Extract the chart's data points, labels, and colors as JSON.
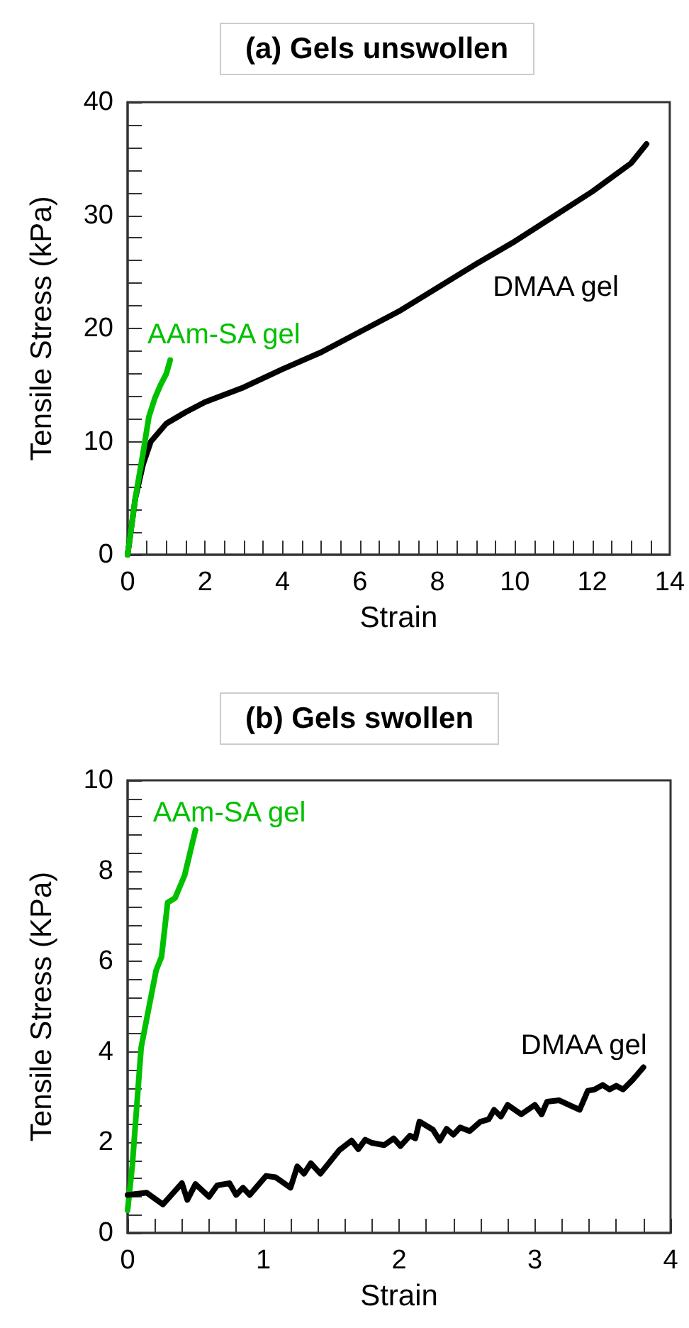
{
  "chart_data": [
    {
      "type": "line",
      "title": "(a) Gels unswollen",
      "xlabel": "Strain",
      "ylabel": "Tensile Stress (kPa)",
      "xlim": [
        0,
        14
      ],
      "ylim": [
        0,
        40
      ],
      "xticks": [
        0,
        {
          "value": 0.5,
          "label": null
        },
        {
          "value": 1,
          "label": null
        },
        {
          "value": 1.5,
          "label": null
        },
        2,
        {
          "value": 2.5,
          "label": null
        },
        {
          "value": 3,
          "label": null
        },
        {
          "value": 3.5,
          "label": null
        },
        4,
        {
          "value": 4.5,
          "label": null
        },
        {
          "value": 5,
          "label": null
        },
        {
          "value": 5.5,
          "label": null
        },
        6,
        {
          "value": 6.5,
          "label": null
        },
        {
          "value": 7,
          "label": null
        },
        {
          "value": 7.5,
          "label": null
        },
        8,
        {
          "value": 8.5,
          "label": null
        },
        {
          "value": 9,
          "label": null
        },
        {
          "value": 9.5,
          "label": null
        },
        10,
        {
          "value": 10.5,
          "label": null
        },
        {
          "value": 11,
          "label": null
        },
        {
          "value": 11.5,
          "label": null
        },
        12,
        {
          "value": 12.5,
          "label": null
        },
        {
          "value": 13,
          "label": null
        },
        {
          "value": 13.5,
          "label": null
        },
        14
      ],
      "yticks": [
        0,
        {
          "value": 2,
          "label": null
        },
        {
          "value": 4,
          "label": null
        },
        {
          "value": 6,
          "label": null
        },
        {
          "value": 8,
          "label": null
        },
        10,
        {
          "value": 12,
          "label": null
        },
        {
          "value": 14,
          "label": null
        },
        {
          "value": 16,
          "label": null
        },
        {
          "value": 18,
          "label": null
        },
        20,
        {
          "value": 22,
          "label": null
        },
        {
          "value": 24,
          "label": null
        },
        {
          "value": 26,
          "label": null
        },
        {
          "value": 28,
          "label": null
        },
        30,
        {
          "value": 32,
          "label": null
        },
        {
          "value": 34,
          "label": null
        },
        {
          "value": 36,
          "label": null
        },
        {
          "value": 38,
          "label": null
        },
        40
      ],
      "grid": false,
      "legend": false,
      "marker": "none",
      "line_style": "solid",
      "series": [
        {
          "name": "DMAA gel",
          "color": "#000000",
          "x": [
            0,
            0.2,
            0.4,
            0.6,
            1,
            1.5,
            2,
            3,
            4,
            5,
            6,
            7,
            8,
            9,
            10,
            11,
            12,
            13,
            13.4
          ],
          "values": [
            0,
            5,
            8,
            10,
            11.6,
            12.6,
            13.5,
            14.8,
            16.4,
            17.9,
            19.7,
            21.5,
            23.6,
            25.7,
            27.7,
            29.9,
            32.1,
            34.6,
            36.3
          ]
        },
        {
          "name": "AAm-SA gel",
          "color": "#00c000",
          "x": [
            0,
            0.2,
            0.4,
            0.55,
            0.7,
            0.85,
            1.0,
            1.1
          ],
          "values": [
            0,
            5,
            9,
            12.2,
            13.8,
            15,
            16,
            17.2
          ]
        }
      ]
    },
    {
      "type": "line",
      "title": "(b) Gels swollen",
      "xlabel": "Strain",
      "ylabel": "Tensile Stress (KPa)",
      "xlim": [
        0,
        4
      ],
      "ylim": [
        0,
        10
      ],
      "xticks": [
        0,
        {
          "value": 0.2,
          "label": null
        },
        {
          "value": 0.4,
          "label": null
        },
        {
          "value": 0.6,
          "label": null
        },
        {
          "value": 0.8,
          "label": null
        },
        1,
        {
          "value": 1.2,
          "label": null
        },
        {
          "value": 1.4,
          "label": null
        },
        {
          "value": 1.6,
          "label": null
        },
        {
          "value": 1.8,
          "label": null
        },
        2,
        {
          "value": 2.2,
          "label": null
        },
        {
          "value": 2.4,
          "label": null
        },
        {
          "value": 2.6,
          "label": null
        },
        {
          "value": 2.8,
          "label": null
        },
        3,
        {
          "value": 3.2,
          "label": null
        },
        {
          "value": 3.4,
          "label": null
        },
        {
          "value": 3.6,
          "label": null
        },
        {
          "value": 3.8,
          "label": null
        },
        4
      ],
      "yticks": [
        0,
        {
          "value": 0.4,
          "label": null
        },
        {
          "value": 0.8,
          "label": null
        },
        {
          "value": 1.2,
          "label": null
        },
        {
          "value": 1.6,
          "label": null
        },
        2,
        {
          "value": 2.4,
          "label": null
        },
        {
          "value": 2.8,
          "label": null
        },
        {
          "value": 3.2,
          "label": null
        },
        {
          "value": 3.6,
          "label": null
        },
        4,
        {
          "value": 4.4,
          "label": null
        },
        {
          "value": 4.8,
          "label": null
        },
        {
          "value": 5.2,
          "label": null
        },
        {
          "value": 5.6,
          "label": null
        },
        6,
        {
          "value": 6.4,
          "label": null
        },
        {
          "value": 6.8,
          "label": null
        },
        {
          "value": 7.2,
          "label": null
        },
        {
          "value": 7.6,
          "label": null
        },
        8,
        {
          "value": 8.4,
          "label": null
        },
        {
          "value": 8.8,
          "label": null
        },
        {
          "value": 9.2,
          "label": null
        },
        {
          "value": 9.6,
          "label": null
        },
        10
      ],
      "grid": false,
      "legend": false,
      "marker": "none",
      "line_style": "solid",
      "series": [
        {
          "name": "AAm-SA gel",
          "color": "#00c000",
          "x": [
            0,
            0.035,
            0.1,
            0.21,
            0.25,
            0.295,
            0.35,
            0.42,
            0.5
          ],
          "values": [
            0.5,
            1.5,
            4.1,
            5.8,
            6.1,
            7.3,
            7.4,
            7.9,
            8.9
          ]
        },
        {
          "name": "DMAA gel",
          "color": "#000000",
          "x": [
            0,
            0.14,
            0.26,
            0.4,
            0.44,
            0.5,
            0.6,
            0.66,
            0.75,
            0.8,
            0.85,
            0.9,
            1.02,
            1.09,
            1.2,
            1.25,
            1.3,
            1.35,
            1.42,
            1.56,
            1.65,
            1.7,
            1.75,
            1.8,
            1.89,
            1.96,
            2.01,
            2.08,
            2.12,
            2.15,
            2.25,
            2.3,
            2.35,
            2.4,
            2.45,
            2.52,
            2.6,
            2.66,
            2.7,
            2.75,
            2.8,
            2.9,
            3.0,
            3.05,
            3.09,
            3.18,
            3.25,
            3.33,
            3.39,
            3.44,
            3.5,
            3.55,
            3.6,
            3.65,
            3.72,
            3.8
          ],
          "values": [
            0.84,
            0.89,
            0.63,
            1.1,
            0.73,
            1.08,
            0.8,
            1.05,
            1.1,
            0.84,
            1.0,
            0.84,
            1.26,
            1.23,
            1.0,
            1.47,
            1.31,
            1.54,
            1.31,
            1.83,
            2.04,
            1.85,
            2.06,
            1.99,
            1.94,
            2.09,
            1.92,
            2.15,
            2.09,
            2.46,
            2.28,
            2.04,
            2.3,
            2.17,
            2.33,
            2.25,
            2.46,
            2.51,
            2.72,
            2.57,
            2.83,
            2.62,
            2.83,
            2.62,
            2.9,
            2.93,
            2.83,
            2.72,
            3.14,
            3.17,
            3.27,
            3.17,
            3.25,
            3.17,
            3.38,
            3.66
          ]
        }
      ]
    }
  ]
}
